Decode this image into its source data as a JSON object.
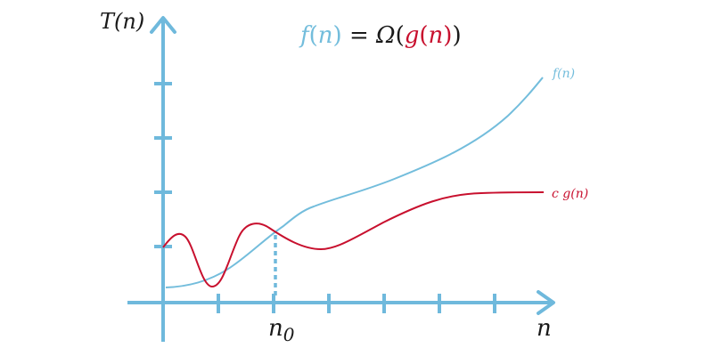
{
  "colors": {
    "axis": "#6fb9dc",
    "f_curve": "#73bddc",
    "g_curve": "#c8102e",
    "text": "#1a1a1a",
    "background": "#ffffff"
  },
  "title": {
    "f": "f",
    "lparen1": "(",
    "n1": "n",
    "rparen1": ")",
    "eq": " = ",
    "omega": "Ω",
    "lparen2": "(",
    "g": "g",
    "lparen3": "(",
    "n2": "n",
    "rparen3": ")",
    "rparen2": ")"
  },
  "axes": {
    "y_label": "T(n)",
    "x_label": "n",
    "x_marker_label": "n",
    "x_marker_subscript": "0"
  },
  "curves": {
    "f_label": "f(n)",
    "g_label": "c g(n)"
  }
}
